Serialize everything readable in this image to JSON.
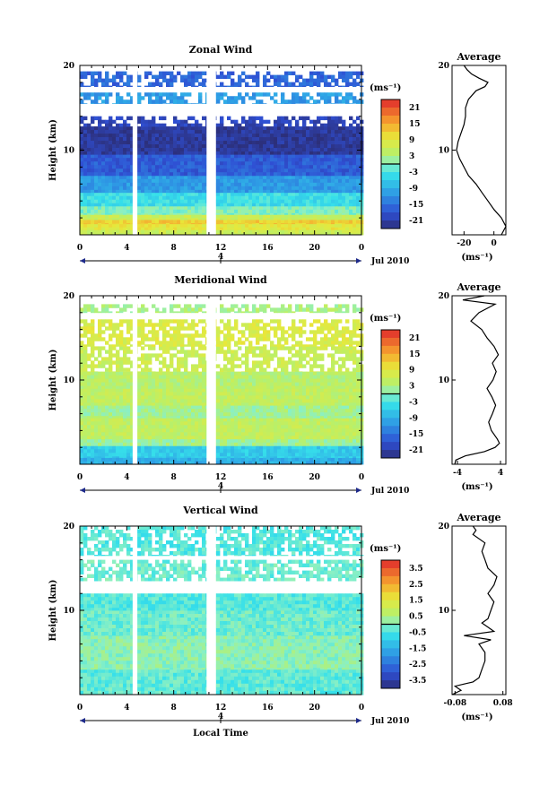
{
  "chart_data": [
    {
      "type": "heatmap",
      "title": "Zonal Wind",
      "ylabel": "Height (km)",
      "yticks": [
        "20",
        "10"
      ],
      "ylim": [
        0,
        20
      ],
      "xticks": [
        "0",
        "4",
        "8",
        "12",
        "16",
        "20",
        "0"
      ],
      "xlim": [
        0,
        24
      ],
      "day_label": "4",
      "date_label": "Jul 2010",
      "colorbar": {
        "unit": "(ms⁻¹)",
        "ticks": [
          "21",
          "15",
          "9",
          "3",
          "-3",
          "-9",
          "-15",
          "-21"
        ],
        "range": [
          -24,
          24
        ]
      },
      "bands": [
        {
          "h0": 0.0,
          "h1": 0.6,
          "v": 6
        },
        {
          "h0": 0.6,
          "h1": 1.3,
          "v": 9
        },
        {
          "h0": 1.3,
          "h1": 1.8,
          "v": 12
        },
        {
          "h0": 1.8,
          "h1": 2.4,
          "v": 6
        },
        {
          "h0": 2.4,
          "h1": 3.4,
          "v": 0
        },
        {
          "h0": 3.4,
          "h1": 5.0,
          "v": -4
        },
        {
          "h0": 5.0,
          "h1": 7.0,
          "v": -11
        },
        {
          "h0": 7.0,
          "h1": 9.5,
          "v": -17
        },
        {
          "h0": 9.5,
          "h1": 12.8,
          "v": -22
        },
        {
          "h0": 12.8,
          "h1": 14.0,
          "v": -20,
          "patchy": true
        },
        {
          "h0": 15.5,
          "h1": 16.8,
          "v": -11,
          "patchy": true
        },
        {
          "h0": 17.5,
          "h1": 19.3,
          "v": -16,
          "patchy": true
        }
      ],
      "gaps": [
        [
          4.5,
          4.9
        ],
        [
          10.8,
          11.6
        ]
      ],
      "average": {
        "title": "Average",
        "xticks": [
          "-20",
          "0"
        ],
        "xlim": [
          -28,
          8
        ],
        "xunit": "(ms⁻¹)",
        "yticks": [
          "20",
          "10"
        ],
        "height": [
          0,
          1,
          2,
          3,
          4,
          5,
          6,
          7,
          8,
          9,
          10,
          11,
          12,
          13,
          14,
          15,
          16,
          17,
          17.5,
          18,
          18.5,
          19,
          19.5,
          20
        ],
        "value": [
          5,
          8,
          5,
          0,
          -4,
          -8,
          -12,
          -17,
          -20,
          -23,
          -25,
          -24,
          -22,
          -20,
          -19,
          -19,
          -17,
          -12,
          -6,
          -4,
          -10,
          -15,
          -18,
          -20
        ]
      }
    },
    {
      "type": "heatmap",
      "title": "Meridional Wind",
      "ylabel": "Height (km)",
      "yticks": [
        "20",
        "10"
      ],
      "ylim": [
        0,
        20
      ],
      "xticks": [
        "0",
        "4",
        "8",
        "12",
        "16",
        "20",
        "0"
      ],
      "xlim": [
        0,
        24
      ],
      "day_label": "4",
      "date_label": "Jul 2010",
      "colorbar": {
        "unit": "(ms⁻¹)",
        "ticks": [
          "21",
          "15",
          "9",
          "3",
          "-3",
          "-9",
          "-15",
          "-21"
        ],
        "range": [
          -24,
          24
        ]
      },
      "bands": [
        {
          "h0": 0.0,
          "h1": 0.8,
          "v": -9
        },
        {
          "h0": 0.8,
          "h1": 2.2,
          "v": -6
        },
        {
          "h0": 2.2,
          "h1": 3.0,
          "v": 2
        },
        {
          "h0": 3.0,
          "h1": 5.5,
          "v": 5
        },
        {
          "h0": 5.5,
          "h1": 7.0,
          "v": 2
        },
        {
          "h0": 7.0,
          "h1": 9.0,
          "v": 5
        },
        {
          "h0": 9.0,
          "h1": 11.0,
          "v": 4
        },
        {
          "h0": 11.0,
          "h1": 14.0,
          "v": 6,
          "patchy": true
        },
        {
          "h0": 14.0,
          "h1": 17.2,
          "v": 8,
          "patchy": true
        },
        {
          "h0": 18.0,
          "h1": 19.0,
          "v": 3,
          "patchy": true
        }
      ],
      "gaps": [
        [
          4.5,
          4.9
        ],
        [
          10.8,
          11.6
        ]
      ],
      "average": {
        "title": "Average",
        "xticks": [
          "-4",
          "4"
        ],
        "xlim": [
          -5,
          5
        ],
        "xunit": "(ms⁻¹)",
        "yticks": [
          "20",
          "10"
        ],
        "height": [
          0,
          0.5,
          1,
          1.5,
          2,
          2.5,
          3,
          4,
          5,
          6,
          7,
          8,
          9,
          10,
          11,
          12,
          13,
          14,
          15,
          16,
          17,
          18,
          19,
          19.5,
          20
        ],
        "value": [
          -4.5,
          -4.3,
          -2.5,
          1,
          3,
          3.8,
          3.4,
          2.3,
          1.8,
          2.5,
          3.1,
          2.4,
          1.5,
          2.6,
          3.2,
          2.5,
          3.6,
          2.8,
          1.5,
          0.5,
          -1.5,
          0,
          3,
          -3,
          1
        ]
      }
    },
    {
      "type": "heatmap",
      "title": "Vertical Wind",
      "ylabel": "Height (km)",
      "yticks": [
        "20",
        "10"
      ],
      "ylim": [
        0,
        20
      ],
      "xticks": [
        "0",
        "4",
        "8",
        "12",
        "16",
        "20",
        "0"
      ],
      "xlim": [
        0,
        24
      ],
      "day_label": "4",
      "date_label": "Jul 2010",
      "xlabel": "Local Time",
      "colorbar": {
        "unit": "(ms⁻¹)",
        "ticks": [
          "3.5",
          "2.5",
          "1.5",
          "0.5",
          "-0.5",
          "-1.5",
          "-2.5",
          "-3.5"
        ],
        "range": [
          -4,
          4
        ]
      },
      "bands": [
        {
          "h0": 0.0,
          "h1": 3.0,
          "v": -0.3
        },
        {
          "h0": 3.0,
          "h1": 7.0,
          "v": 0.1
        },
        {
          "h0": 7.0,
          "h1": 10.0,
          "v": -0.2
        },
        {
          "h0": 10.0,
          "h1": 12.0,
          "v": -0.4
        },
        {
          "h0": 13.5,
          "h1": 16.0,
          "v": -0.2,
          "patchy": true
        },
        {
          "h0": 16.5,
          "h1": 20.0,
          "v": -0.4,
          "patchy": true
        }
      ],
      "gaps": [
        [
          4.5,
          4.9
        ],
        [
          10.8,
          11.6
        ]
      ],
      "average": {
        "title": "Average",
        "xticks": [
          "-0.08",
          "0.08"
        ],
        "xlim": [
          -0.09,
          0.09
        ],
        "xunit": "(ms⁻¹)",
        "yticks": [
          "20",
          "10"
        ],
        "height": [
          0,
          0.5,
          1,
          1.5,
          2,
          3,
          4,
          5,
          6,
          6.5,
          7,
          7.5,
          8,
          8.5,
          9,
          10,
          11,
          12,
          13,
          14,
          15,
          16,
          17,
          18,
          19,
          19.5,
          20
        ],
        "value": [
          -0.09,
          -0.06,
          -0.08,
          -0.02,
          0.0,
          0.01,
          0.02,
          0.02,
          0.0,
          0.04,
          -0.05,
          0.05,
          0.03,
          0.01,
          0.03,
          0.04,
          0.05,
          0.03,
          0.05,
          0.06,
          0.03,
          0.02,
          0.01,
          0.02,
          -0.02,
          -0.01,
          -0.02
        ]
      }
    }
  ]
}
